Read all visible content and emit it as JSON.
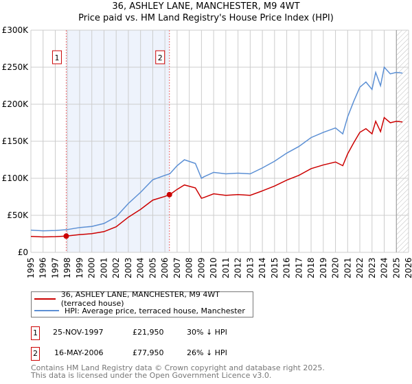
{
  "title": "36, ASHLEY LANE, MANCHESTER, M9 4WT",
  "subtitle": "Price paid vs. HM Land Registry's House Price Index (HPI)",
  "chart_data": {
    "type": "line",
    "title": "36, ASHLEY LANE, MANCHESTER, M9 4WT — Price paid vs. HM Land Registry's House Price Index (HPI)",
    "xlim": [
      1995,
      2026
    ],
    "ylim": [
      0,
      300000
    ],
    "yticks": [
      0,
      50000,
      100000,
      150000,
      200000,
      250000,
      300000
    ],
    "ytick_labels": [
      "£0",
      "£50K",
      "£100K",
      "£150K",
      "£200K",
      "£250K",
      "£300K"
    ],
    "xticks": [
      1995,
      1996,
      1997,
      1998,
      1999,
      2000,
      2001,
      2002,
      2003,
      2004,
      2005,
      2006,
      2007,
      2008,
      2009,
      2010,
      2011,
      2012,
      2013,
      2014,
      2015,
      2016,
      2017,
      2018,
      2019,
      2020,
      2021,
      2022,
      2023,
      2024,
      2025,
      2026
    ],
    "grid": true,
    "series": [
      {
        "name": "HPI: Average price, terraced house, Manchester",
        "color": "#5b8fd4",
        "x": [
          1995,
          1996,
          1997,
          1997.9,
          1999,
          2000,
          2001,
          2002,
          2003,
          2004,
          2005,
          2006,
          2006.4,
          2007,
          2007.6,
          2008.5,
          2009,
          2009.2,
          2010,
          2011,
          2012,
          2013,
          2014,
          2015,
          2016,
          2017,
          2018,
          2019,
          2020,
          2020.6,
          2021,
          2021.5,
          2022,
          2022.5,
          2023,
          2023.3,
          2023.7,
          2024,
          2024.5,
          2025,
          2025.5
        ],
        "y": [
          30000,
          29000,
          29500,
          30500,
          33500,
          35000,
          39000,
          48000,
          66000,
          81000,
          98000,
          104000,
          106000,
          117000,
          125000,
          120000,
          100000,
          102000,
          108000,
          106000,
          107000,
          106000,
          114000,
          123000,
          134000,
          143000,
          155000,
          162000,
          168000,
          160000,
          183000,
          204000,
          223000,
          230000,
          220000,
          243000,
          225000,
          250000,
          241000,
          243000,
          242000
        ]
      },
      {
        "name": "36, ASHLEY LANE, MANCHESTER, M9 4WT (terraced house)",
        "color": "#cc0000",
        "x": [
          1995,
          1996,
          1997,
          1997.9,
          1999,
          2000,
          2001,
          2002,
          2003,
          2004,
          2005,
          2006,
          2006.4,
          2007,
          2007.6,
          2008.5,
          2009,
          2009.2,
          2010,
          2011,
          2012,
          2013,
          2014,
          2015,
          2016,
          2017,
          2018,
          2019,
          2020,
          2020.6,
          2021,
          2021.5,
          2022,
          2022.5,
          2023,
          2023.3,
          2023.7,
          2024,
          2024.5,
          2025,
          2025.5
        ],
        "y": [
          21500,
          20800,
          21200,
          21950,
          24000,
          25200,
          28000,
          34500,
          47500,
          58000,
          70500,
          75500,
          77950,
          85000,
          91000,
          87000,
          73000,
          74000,
          79000,
          77000,
          78000,
          77000,
          83000,
          89500,
          97500,
          104000,
          113000,
          118000,
          122000,
          117000,
          133000,
          148000,
          162000,
          167000,
          160000,
          177000,
          163000,
          182000,
          175000,
          177000,
          176000
        ]
      }
    ],
    "sales": [
      {
        "id": "1",
        "x": 1997.9,
        "y": 21950
      },
      {
        "id": "2",
        "x": 2006.37,
        "y": 77950
      }
    ],
    "shaded_between_sales": true,
    "hatched_from": 2025.0
  },
  "legend": {
    "items": [
      {
        "label": "36, ASHLEY LANE, MANCHESTER, M9 4WT (terraced house)",
        "color": "#cc0000"
      },
      {
        "label": "HPI: Average price, terraced house, Manchester",
        "color": "#5b8fd4"
      }
    ]
  },
  "transactions": [
    {
      "id": "1",
      "date": "25-NOV-1997",
      "price": "£21,950",
      "hpi": "30% ↓ HPI"
    },
    {
      "id": "2",
      "date": "16-MAY-2006",
      "price": "£77,950",
      "hpi": "26% ↓ HPI"
    }
  ],
  "footer": {
    "line1": "Contains HM Land Registry data © Crown copyright and database right 2025.",
    "line2": "This data is licensed under the Open Government Licence v3.0."
  }
}
